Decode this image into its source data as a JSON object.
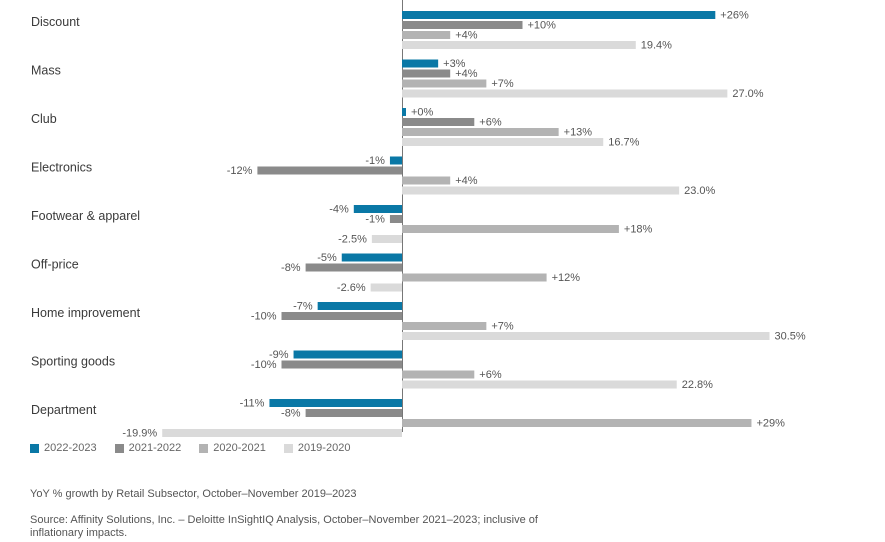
{
  "chart_data": {
    "type": "bar",
    "orientation": "horizontal",
    "categories": [
      "Discount",
      "Mass",
      "Club",
      "Electronics",
      "Footwear & apparel",
      "Off-price",
      "Home improvement",
      "Sporting goods",
      "Department"
    ],
    "series": [
      {
        "name": "2022-2023",
        "color": "#0a78a6",
        "values": [
          26,
          3,
          0,
          -1,
          -4,
          -5,
          -7,
          -9,
          -11
        ],
        "labels": [
          "+26%",
          "+3%",
          "+0%",
          "-1%",
          "-4%",
          "-5%",
          "-7%",
          "-9%",
          "-11%"
        ]
      },
      {
        "name": "2021-2022",
        "color": "#8a8a8a",
        "values": [
          10,
          4,
          6,
          -12,
          -1,
          -8,
          -10,
          -10,
          -8
        ],
        "labels": [
          "+10%",
          "+4%",
          "+6%",
          "-12%",
          "-1%",
          "-8%",
          "-10%",
          "-10%",
          "-8%"
        ]
      },
      {
        "name": "2020-2021",
        "color": "#b3b3b3",
        "values": [
          4,
          7,
          13,
          4,
          18,
          12,
          7,
          6,
          29
        ],
        "labels": [
          "+4%",
          "+7%",
          "+13%",
          "+4%",
          "+18%",
          "+12%",
          "+7%",
          "+6%",
          "+29%"
        ]
      },
      {
        "name": "2019-2020",
        "color": "#dadada",
        "values": [
          19.4,
          27.0,
          16.7,
          23.0,
          -2.5,
          -2.6,
          30.5,
          22.8,
          -19.9
        ],
        "labels": [
          "19.4%",
          "27.0%",
          "16.7%",
          "23.0%",
          "-2.5%",
          "-2.6%",
          "30.5%",
          "22.8%",
          "-19.9%"
        ]
      }
    ],
    "xlim": [
      -20,
      31
    ],
    "legend_position": "bottom-left",
    "grid": false
  },
  "caption": "YoY % growth by Retail Subsector, October–November 2019–2023",
  "source": "Source: Affinity Solutions, Inc. – Deloitte InSightIQ Analysis, October–November 2021–2023; inclusive of inflationary impacts."
}
